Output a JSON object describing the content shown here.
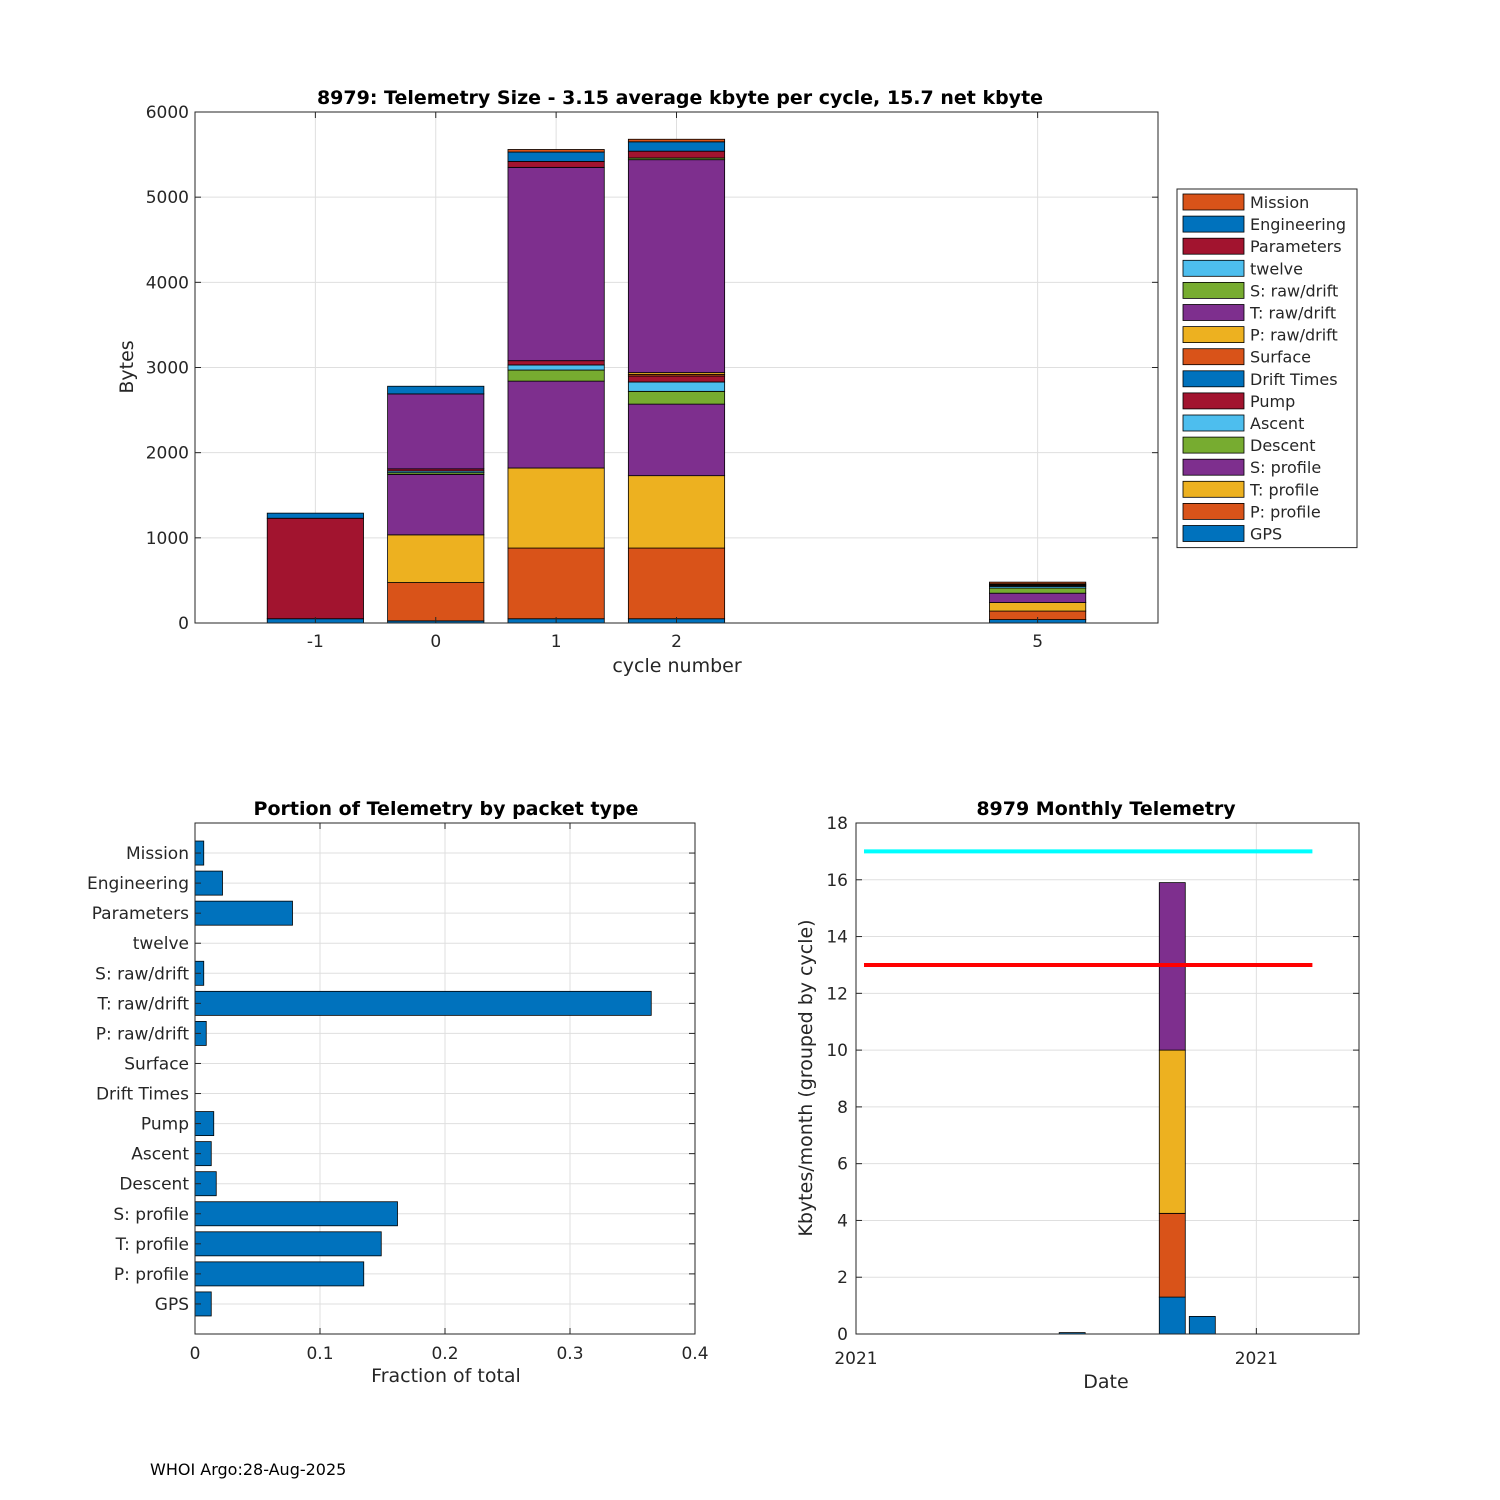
{
  "footer": "WHOI Argo:28-Aug-2025",
  "colors": {
    "Mission": "#D95319",
    "Engineering": "#0072BD",
    "Parameters": "#A2142F",
    "twelve": "#4DBEEE",
    "S: raw/drift": "#77AC30",
    "T: raw/drift": "#7E2F8E",
    "P: raw/drift": "#EDB120",
    "Surface": "#D95319",
    "Drift Times": "#0072BD",
    "Pump": "#A2142F",
    "Ascent": "#4DBEEE",
    "Descent": "#77AC30",
    "S: profile": "#7E2F8E",
    "T: profile": "#EDB120",
    "P: profile": "#D95319",
    "GPS": "#0072BD",
    "bar": "#0072BD",
    "line_cyan": "#00FFFF",
    "line_red": "#FF0000"
  },
  "chart_data": [
    {
      "type": "bar",
      "stacked": true,
      "title": "8979: Telemetry Size - 3.15 average kbyte per cycle,   15.7 net kbyte",
      "xlabel": "cycle number",
      "ylabel": "Bytes",
      "xlim": [
        -2,
        6
      ],
      "ylim": [
        0,
        6000
      ],
      "xticks": [
        -1,
        0,
        1,
        2,
        5
      ],
      "yticks": [
        0,
        1000,
        2000,
        3000,
        4000,
        5000,
        6000
      ],
      "grid": true,
      "legend_position": "outside-right",
      "legend": [
        "Mission",
        "Engineering",
        "Parameters",
        "twelve",
        "S: raw/drift",
        "T: raw/drift",
        "P: raw/drift",
        "Surface",
        "Drift Times",
        "Pump",
        "Ascent",
        "Descent",
        "S: profile",
        "T: profile",
        "P: profile",
        "GPS"
      ],
      "stack_order": [
        "GPS",
        "P: profile",
        "T: profile",
        "S: profile",
        "Descent",
        "Ascent",
        "Pump",
        "Drift Times",
        "Surface",
        "P: raw/drift",
        "T: raw/drift",
        "S: raw/drift",
        "twelve",
        "Parameters",
        "Engineering",
        "Mission"
      ],
      "cycles": [
        -1,
        0,
        1,
        2,
        5
      ],
      "series": [
        {
          "name": "GPS",
          "values": [
            50,
            25,
            50,
            50,
            40
          ]
        },
        {
          "name": "P: profile",
          "values": [
            0,
            450,
            830,
            830,
            100
          ]
        },
        {
          "name": "T: profile",
          "values": [
            0,
            560,
            940,
            850,
            100
          ]
        },
        {
          "name": "S: profile",
          "values": [
            0,
            710,
            1020,
            840,
            110
          ]
        },
        {
          "name": "Descent",
          "values": [
            0,
            20,
            130,
            150,
            60
          ]
        },
        {
          "name": "Ascent",
          "values": [
            0,
            20,
            60,
            110,
            20
          ]
        },
        {
          "name": "Pump",
          "values": [
            0,
            25,
            50,
            70,
            10
          ]
        },
        {
          "name": "Drift Times",
          "values": [
            0,
            0,
            0,
            0,
            0
          ]
        },
        {
          "name": "Surface",
          "values": [
            0,
            0,
            0,
            20,
            0
          ]
        },
        {
          "name": "P: raw/drift",
          "values": [
            0,
            0,
            0,
            20,
            10
          ]
        },
        {
          "name": "T: raw/drift",
          "values": [
            0,
            880,
            2270,
            2500,
            0
          ]
        },
        {
          "name": "S: raw/drift",
          "values": [
            0,
            0,
            0,
            20,
            10
          ]
        },
        {
          "name": "twelve",
          "values": [
            0,
            0,
            0,
            0,
            0
          ]
        },
        {
          "name": "Parameters",
          "values": [
            1180,
            0,
            70,
            80,
            0
          ]
        },
        {
          "name": "Engineering",
          "values": [
            60,
            90,
            110,
            110,
            0
          ]
        },
        {
          "name": "Mission",
          "values": [
            0,
            0,
            30,
            30,
            20
          ]
        }
      ]
    },
    {
      "type": "bar",
      "orientation": "horizontal",
      "title": "Portion of Telemetry by packet type",
      "xlabel": "Fraction of total",
      "ylabel": "",
      "xlim": [
        0,
        0.4
      ],
      "xticks": [
        0,
        0.1,
        0.2,
        0.3,
        0.4
      ],
      "xtick_labels": [
        "0",
        "0.1",
        "0.2",
        "0.3",
        "0.4"
      ],
      "grid": true,
      "categories": [
        "Mission",
        "Engineering",
        "Parameters",
        "twelve",
        "S: raw/drift",
        "T: raw/drift",
        "P: raw/drift",
        "Surface",
        "Drift Times",
        "Pump",
        "Ascent",
        "Descent",
        "S: profile",
        "T: profile",
        "P: profile",
        "GPS"
      ],
      "values": [
        0.007,
        0.022,
        0.078,
        0,
        0.007,
        0.365,
        0.009,
        0,
        0,
        0.015,
        0.013,
        0.017,
        0.162,
        0.149,
        0.135,
        0.013
      ]
    },
    {
      "type": "bar",
      "stacked": true,
      "title": "8979 Monthly Telemetry",
      "xlabel": "Date",
      "ylabel": "Kbytes/month (grouped by cycle)",
      "ylim": [
        0,
        18
      ],
      "yticks": [
        0,
        2,
        4,
        6,
        8,
        10,
        12,
        14,
        16,
        18
      ],
      "xlim": [
        0,
        12
      ],
      "xtick_positions": [
        0,
        10
      ],
      "xtick_labels": [
        "2021",
        "2021"
      ],
      "grid": true,
      "bars": [
        {
          "x": 5.4,
          "segments": [
            {
              "value": 0.05,
              "color": "#0072BD"
            }
          ]
        },
        {
          "x": 7.9,
          "segments": [
            {
              "value": 1.3,
              "color": "#0072BD"
            },
            {
              "value": 2.95,
              "color": "#D95319"
            },
            {
              "value": 5.75,
              "color": "#EDB120"
            },
            {
              "value": 5.9,
              "color": "#7E2F8E"
            }
          ]
        },
        {
          "x": 8.65,
          "segments": [
            {
              "value": 0.62,
              "color": "#0072BD"
            }
          ]
        }
      ],
      "lines": [
        {
          "y": 17,
          "color": "#00FFFF",
          "x_range": [
            0.2,
            11.4
          ]
        },
        {
          "y": 13,
          "color": "#FF0000",
          "x_range": [
            0.2,
            11.4
          ]
        }
      ]
    }
  ]
}
